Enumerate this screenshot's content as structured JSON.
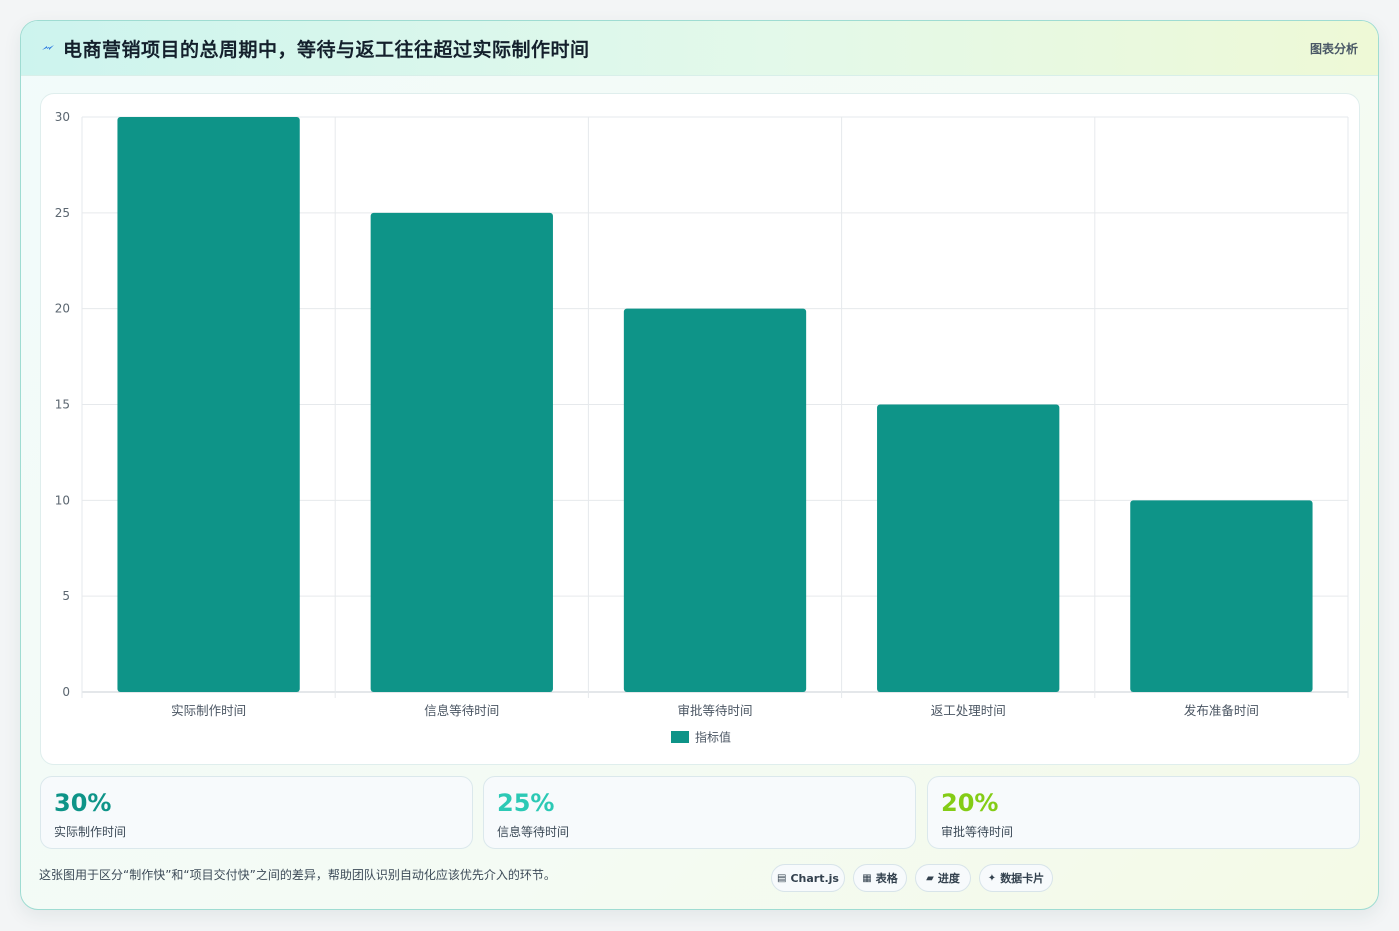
{
  "header": {
    "icon": "lightning-icon",
    "title": "电商营销项目的总周期中，等待与返工往往超过实际制作时间",
    "tag": "图表分析"
  },
  "chart_data": {
    "type": "bar",
    "categories": [
      "实际制作时间",
      "信息等待时间",
      "审批等待时间",
      "返工处理时间",
      "发布准备时间"
    ],
    "series": [
      {
        "name": "指标值",
        "values": [
          30,
          25,
          20,
          15,
          10
        ],
        "color": "#0e9488"
      }
    ],
    "ylim": [
      0,
      30
    ],
    "yticks": [
      0,
      5,
      10,
      15,
      20,
      25,
      30
    ],
    "grid": true,
    "legend": "bottom"
  },
  "stats": [
    {
      "value": "30%",
      "label": "实际制作时间",
      "color": "#0e9488"
    },
    {
      "value": "25%",
      "label": "信息等待时间",
      "color": "#2cc9b5"
    },
    {
      "value": "20%",
      "label": "审批等待时间",
      "color": "#84cc16"
    }
  ],
  "footer": {
    "note": "这张图用于区分“制作快”和“项目交付快”之间的差异，帮助团队识别自动化应该优先介入的环节。",
    "pills": [
      {
        "icon": "chart-icon",
        "label": "Chart.js"
      },
      {
        "icon": "table-icon",
        "label": "表格"
      },
      {
        "icon": "progress-icon",
        "label": "进度"
      },
      {
        "icon": "sparkle-icon",
        "label": "数据卡片"
      }
    ]
  }
}
